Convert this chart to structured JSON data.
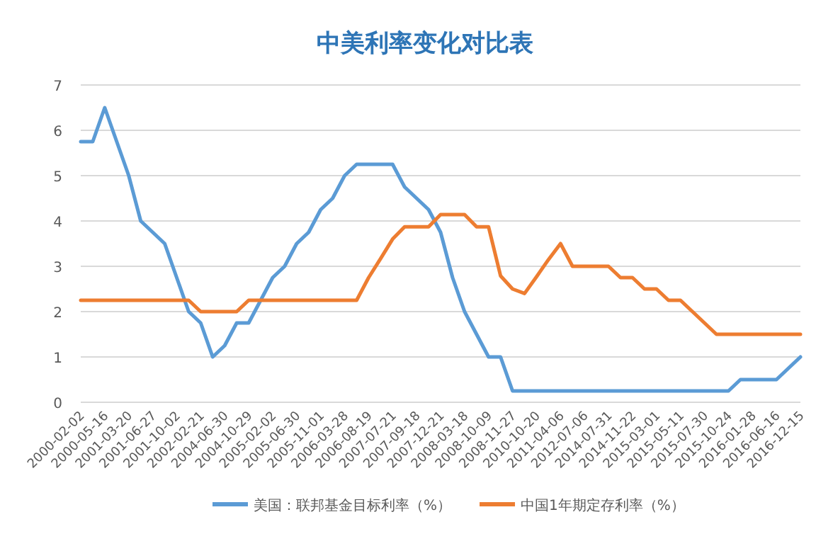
{
  "chart_data": {
    "type": "line",
    "title": "中美利率变化对比表",
    "categories": [
      "2000-02-02",
      null,
      "2000-05-16",
      null,
      "2001-03-20",
      null,
      "2001-06-27",
      null,
      "2001-10-02",
      null,
      "2002-02-21",
      null,
      "2004-06-30",
      null,
      "2004-10-29",
      null,
      "2005-02-02",
      null,
      "2005-06-30",
      null,
      "2005-11-01",
      null,
      "2006-03-28",
      null,
      "2006-08-19",
      null,
      "2007-07-21",
      null,
      "2007-09-18",
      null,
      "2007-12-21",
      null,
      "2008-03-18",
      null,
      "2008-10-09",
      null,
      "2008-11-27",
      null,
      "2010-10-20",
      null,
      "2011-04-06",
      null,
      "2012-07-06",
      null,
      "2014-07-31",
      null,
      "2014-11-22",
      null,
      "2015-03-01",
      null,
      "2015-05-11",
      null,
      "2015-07-30",
      null,
      "2015-10-24",
      null,
      "2016-01-28",
      null,
      "2016-06-16",
      null,
      "2016-12-15"
    ],
    "series": [
      {
        "name": "美国：联邦基金目标利率（%）",
        "color": "#5b9bd5",
        "values": [
          5.75,
          5.75,
          6.5,
          5.75,
          5.0,
          4.0,
          3.75,
          3.5,
          2.75,
          2.0,
          1.75,
          1.0,
          1.25,
          1.75,
          1.75,
          2.25,
          2.75,
          3.0,
          3.5,
          3.75,
          4.25,
          4.5,
          5.0,
          5.25,
          5.25,
          5.25,
          5.25,
          4.75,
          4.5,
          4.25,
          3.75,
          2.75,
          2.0,
          1.5,
          1.0,
          1.0,
          0.25,
          0.25,
          0.25,
          0.25,
          0.25,
          0.25,
          0.25,
          0.25,
          0.25,
          0.25,
          0.25,
          0.25,
          0.25,
          0.25,
          0.25,
          0.25,
          0.25,
          0.25,
          0.25,
          0.5,
          0.5,
          0.5,
          0.5,
          0.75,
          1.0
        ]
      },
      {
        "name": "中国1年期定存利率（%）",
        "color": "#ed7d31",
        "values": [
          2.25,
          2.25,
          2.25,
          2.25,
          2.25,
          2.25,
          2.25,
          2.25,
          2.25,
          2.25,
          2.0,
          2.0,
          2.0,
          2.0,
          2.25,
          2.25,
          2.25,
          2.25,
          2.25,
          2.25,
          2.25,
          2.25,
          2.25,
          2.25,
          2.75,
          3.17,
          3.6,
          3.87,
          3.87,
          3.87,
          4.14,
          4.14,
          4.14,
          3.87,
          3.87,
          2.79,
          2.5,
          2.4,
          2.77,
          3.15,
          3.5,
          3.0,
          3.0,
          3.0,
          3.0,
          2.75,
          2.75,
          2.5,
          2.5,
          2.25,
          2.25,
          2.0,
          1.75,
          1.5,
          1.5,
          1.5,
          1.5,
          1.5,
          1.5,
          1.5,
          1.5
        ]
      }
    ],
    "ylim": [
      0,
      7
    ],
    "yticks": [
      0,
      1,
      2,
      3,
      4,
      5,
      6,
      7
    ],
    "grid": "y",
    "legend": "bottom",
    "marker": "none",
    "line_style": "solid"
  }
}
